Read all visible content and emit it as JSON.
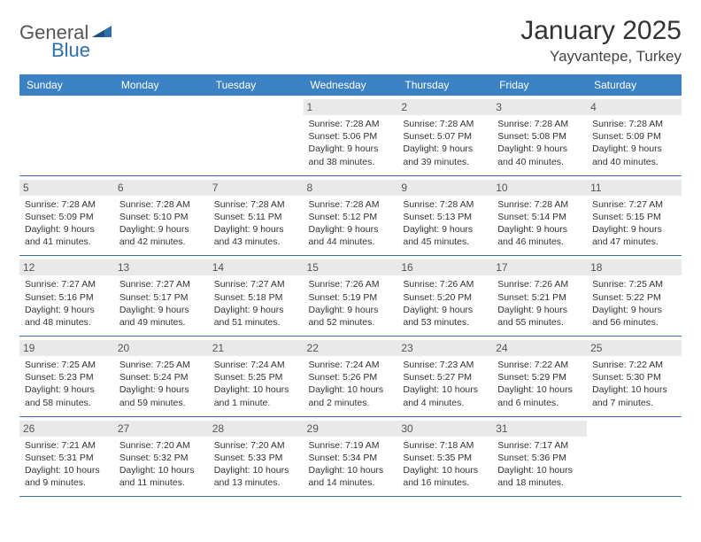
{
  "brand": {
    "part1": "General",
    "part2": "Blue"
  },
  "title": "January 2025",
  "location": "Yayvantepe, Turkey",
  "colors": {
    "header_bg": "#3b82c4",
    "header_text": "#ffffff",
    "daynum_bg": "#e9e9e9",
    "border": "#3b6fa5",
    "text": "#333333",
    "brand_gray": "#555555",
    "brand_blue": "#2f6fab"
  },
  "typography": {
    "title_fontsize": 30,
    "subtitle_fontsize": 17,
    "dayhead_fontsize": 12,
    "info_fontsize": 10.5
  },
  "day_headers": [
    "Sunday",
    "Monday",
    "Tuesday",
    "Wednesday",
    "Thursday",
    "Friday",
    "Saturday"
  ],
  "weeks": [
    [
      null,
      null,
      null,
      {
        "n": "1",
        "sr": "Sunrise: 7:28 AM",
        "ss": "Sunset: 5:06 PM",
        "dl": "Daylight: 9 hours and 38 minutes."
      },
      {
        "n": "2",
        "sr": "Sunrise: 7:28 AM",
        "ss": "Sunset: 5:07 PM",
        "dl": "Daylight: 9 hours and 39 minutes."
      },
      {
        "n": "3",
        "sr": "Sunrise: 7:28 AM",
        "ss": "Sunset: 5:08 PM",
        "dl": "Daylight: 9 hours and 40 minutes."
      },
      {
        "n": "4",
        "sr": "Sunrise: 7:28 AM",
        "ss": "Sunset: 5:09 PM",
        "dl": "Daylight: 9 hours and 40 minutes."
      }
    ],
    [
      {
        "n": "5",
        "sr": "Sunrise: 7:28 AM",
        "ss": "Sunset: 5:09 PM",
        "dl": "Daylight: 9 hours and 41 minutes."
      },
      {
        "n": "6",
        "sr": "Sunrise: 7:28 AM",
        "ss": "Sunset: 5:10 PM",
        "dl": "Daylight: 9 hours and 42 minutes."
      },
      {
        "n": "7",
        "sr": "Sunrise: 7:28 AM",
        "ss": "Sunset: 5:11 PM",
        "dl": "Daylight: 9 hours and 43 minutes."
      },
      {
        "n": "8",
        "sr": "Sunrise: 7:28 AM",
        "ss": "Sunset: 5:12 PM",
        "dl": "Daylight: 9 hours and 44 minutes."
      },
      {
        "n": "9",
        "sr": "Sunrise: 7:28 AM",
        "ss": "Sunset: 5:13 PM",
        "dl": "Daylight: 9 hours and 45 minutes."
      },
      {
        "n": "10",
        "sr": "Sunrise: 7:28 AM",
        "ss": "Sunset: 5:14 PM",
        "dl": "Daylight: 9 hours and 46 minutes."
      },
      {
        "n": "11",
        "sr": "Sunrise: 7:27 AM",
        "ss": "Sunset: 5:15 PM",
        "dl": "Daylight: 9 hours and 47 minutes."
      }
    ],
    [
      {
        "n": "12",
        "sr": "Sunrise: 7:27 AM",
        "ss": "Sunset: 5:16 PM",
        "dl": "Daylight: 9 hours and 48 minutes."
      },
      {
        "n": "13",
        "sr": "Sunrise: 7:27 AM",
        "ss": "Sunset: 5:17 PM",
        "dl": "Daylight: 9 hours and 49 minutes."
      },
      {
        "n": "14",
        "sr": "Sunrise: 7:27 AM",
        "ss": "Sunset: 5:18 PM",
        "dl": "Daylight: 9 hours and 51 minutes."
      },
      {
        "n": "15",
        "sr": "Sunrise: 7:26 AM",
        "ss": "Sunset: 5:19 PM",
        "dl": "Daylight: 9 hours and 52 minutes."
      },
      {
        "n": "16",
        "sr": "Sunrise: 7:26 AM",
        "ss": "Sunset: 5:20 PM",
        "dl": "Daylight: 9 hours and 53 minutes."
      },
      {
        "n": "17",
        "sr": "Sunrise: 7:26 AM",
        "ss": "Sunset: 5:21 PM",
        "dl": "Daylight: 9 hours and 55 minutes."
      },
      {
        "n": "18",
        "sr": "Sunrise: 7:25 AM",
        "ss": "Sunset: 5:22 PM",
        "dl": "Daylight: 9 hours and 56 minutes."
      }
    ],
    [
      {
        "n": "19",
        "sr": "Sunrise: 7:25 AM",
        "ss": "Sunset: 5:23 PM",
        "dl": "Daylight: 9 hours and 58 minutes."
      },
      {
        "n": "20",
        "sr": "Sunrise: 7:25 AM",
        "ss": "Sunset: 5:24 PM",
        "dl": "Daylight: 9 hours and 59 minutes."
      },
      {
        "n": "21",
        "sr": "Sunrise: 7:24 AM",
        "ss": "Sunset: 5:25 PM",
        "dl": "Daylight: 10 hours and 1 minute."
      },
      {
        "n": "22",
        "sr": "Sunrise: 7:24 AM",
        "ss": "Sunset: 5:26 PM",
        "dl": "Daylight: 10 hours and 2 minutes."
      },
      {
        "n": "23",
        "sr": "Sunrise: 7:23 AM",
        "ss": "Sunset: 5:27 PM",
        "dl": "Daylight: 10 hours and 4 minutes."
      },
      {
        "n": "24",
        "sr": "Sunrise: 7:22 AM",
        "ss": "Sunset: 5:29 PM",
        "dl": "Daylight: 10 hours and 6 minutes."
      },
      {
        "n": "25",
        "sr": "Sunrise: 7:22 AM",
        "ss": "Sunset: 5:30 PM",
        "dl": "Daylight: 10 hours and 7 minutes."
      }
    ],
    [
      {
        "n": "26",
        "sr": "Sunrise: 7:21 AM",
        "ss": "Sunset: 5:31 PM",
        "dl": "Daylight: 10 hours and 9 minutes."
      },
      {
        "n": "27",
        "sr": "Sunrise: 7:20 AM",
        "ss": "Sunset: 5:32 PM",
        "dl": "Daylight: 10 hours and 11 minutes."
      },
      {
        "n": "28",
        "sr": "Sunrise: 7:20 AM",
        "ss": "Sunset: 5:33 PM",
        "dl": "Daylight: 10 hours and 13 minutes."
      },
      {
        "n": "29",
        "sr": "Sunrise: 7:19 AM",
        "ss": "Sunset: 5:34 PM",
        "dl": "Daylight: 10 hours and 14 minutes."
      },
      {
        "n": "30",
        "sr": "Sunrise: 7:18 AM",
        "ss": "Sunset: 5:35 PM",
        "dl": "Daylight: 10 hours and 16 minutes."
      },
      {
        "n": "31",
        "sr": "Sunrise: 7:17 AM",
        "ss": "Sunset: 5:36 PM",
        "dl": "Daylight: 10 hours and 18 minutes."
      },
      null
    ]
  ]
}
